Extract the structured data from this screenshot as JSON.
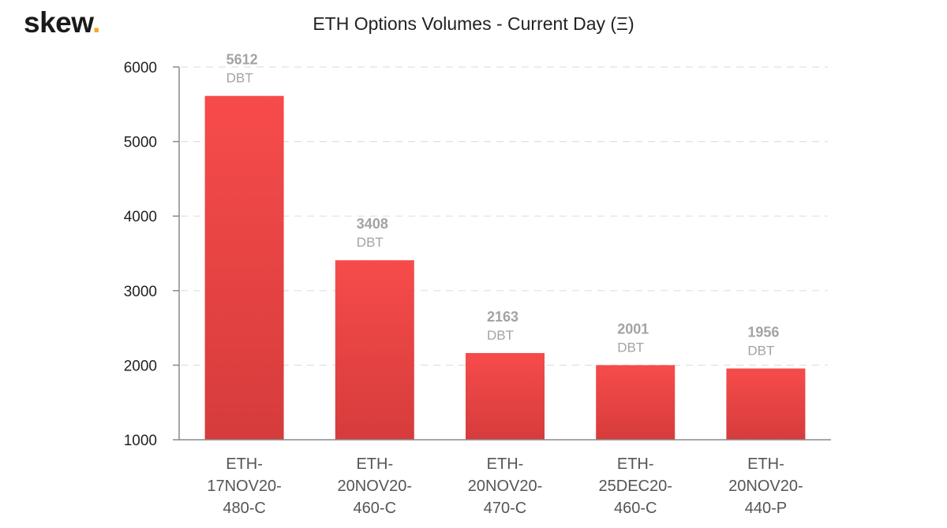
{
  "brand": {
    "name": "skew",
    "dot": "."
  },
  "colors": {
    "bar_top": "#f74b4b",
    "bar_bottom": "#d63c3c",
    "grid": "#e0e0e0",
    "axis": "#8a8a8a",
    "logo_dot": "#f5a623"
  },
  "chart_data": {
    "type": "bar",
    "title": "ETH Options Volumes - Current Day (Ξ)",
    "xlabel": "",
    "ylabel": "",
    "ylim": [
      1000,
      6000
    ],
    "yticks": [
      "6000",
      "5000",
      "4000",
      "3000",
      "2000",
      "1000"
    ],
    "grid": true,
    "categories": [
      [
        "ETH-",
        "17NOV20-",
        "480-C"
      ],
      [
        "ETH-",
        "20NOV20-",
        "460-C"
      ],
      [
        "ETH-",
        "20NOV20-",
        "470-C"
      ],
      [
        "ETH-",
        "25DEC20-",
        "460-C"
      ],
      [
        "ETH-",
        "20NOV20-",
        "440-P"
      ]
    ],
    "values": [
      5612,
      3408,
      2163,
      2001,
      1956
    ],
    "data_labels": [
      "5612",
      "3408",
      "2163",
      "2001",
      "1956"
    ],
    "exchange_labels": [
      "DBT",
      "DBT",
      "DBT",
      "DBT",
      "DBT"
    ]
  }
}
